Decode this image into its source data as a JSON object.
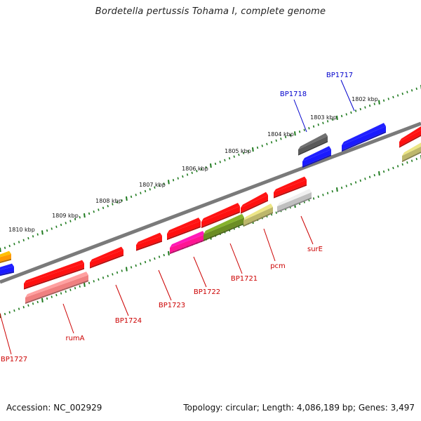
{
  "title": "Bordetella pertussis Tohama I, complete genome",
  "footer": {
    "accession": "Accession: NC_002929",
    "summary": "Topology: circular; Length: 4,086,189 bp; Genes: 3,497"
  },
  "scale_ticks": [
    {
      "label": "1802 kbp",
      "kbp": 1802
    },
    {
      "label": "1803 kbp",
      "kbp": 1803
    },
    {
      "label": "1804 kbp",
      "kbp": 1804
    },
    {
      "label": "1805 kbp",
      "kbp": 1805
    },
    {
      "label": "1806 kbp",
      "kbp": 1806
    },
    {
      "label": "1807 kbp",
      "kbp": 1807
    },
    {
      "label": "1808 kbp",
      "kbp": 1808
    },
    {
      "label": "1809 kbp",
      "kbp": 1809
    },
    {
      "label": "1810 kbp",
      "kbp": 1810
    }
  ],
  "colors": {
    "backbone": "#7a7a7a",
    "tick": "#1e7a1e",
    "label_red": "#cc0000",
    "label_blue": "#0000cc"
  },
  "gene_labels": [
    {
      "text": "BP1717",
      "color": "#0000cc"
    },
    {
      "text": "BP1718",
      "color": "#0000cc"
    },
    {
      "text": "surE",
      "color": "#cc0000"
    },
    {
      "text": "pcm",
      "color": "#cc0000"
    },
    {
      "text": "BP1721",
      "color": "#cc0000"
    },
    {
      "text": "BP1722",
      "color": "#cc0000"
    },
    {
      "text": "BP1723",
      "color": "#cc0000"
    },
    {
      "text": "BP1724",
      "color": "#cc0000"
    },
    {
      "text": "rumA",
      "color": "#cc0000"
    },
    {
      "text": "BP1727",
      "color": "#cc0000"
    }
  ],
  "features": [
    {
      "color": "#ff9a00"
    },
    {
      "color": "#1a1aff"
    },
    {
      "color": "#ff1010"
    },
    {
      "color": "#f08080"
    },
    {
      "color": "#ff1010"
    },
    {
      "color": "#ff1010"
    },
    {
      "color": "#ff1010"
    },
    {
      "color": "#ff1493"
    },
    {
      "color": "#ff1010"
    },
    {
      "color": "#6b8e23"
    },
    {
      "color": "#ff1010"
    },
    {
      "color": "#bdb76b"
    },
    {
      "color": "#ff1010"
    },
    {
      "color": "#c0c0c0"
    },
    {
      "color": "#5a5a5a"
    },
    {
      "color": "#1a1aff"
    },
    {
      "color": "#1a1aff"
    },
    {
      "color": "#ff1010"
    },
    {
      "color": "#bdb76b"
    }
  ]
}
